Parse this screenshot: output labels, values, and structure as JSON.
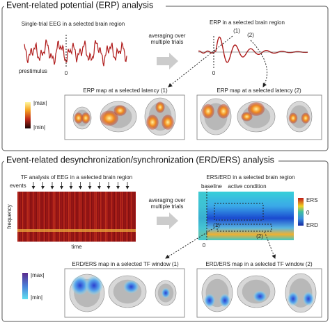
{
  "erp_panel": {
    "title": "Event-related potential (ERP) analysis",
    "single_trial": {
      "label": "Single-trial EEG in a selected brain region",
      "prestimulus_label": "prestimulus",
      "zero_label": "0"
    },
    "averaging_label": [
      "averaging over",
      "multiple trials"
    ],
    "erp": {
      "label": "ERP in a selected brain region",
      "peak_1": "(1)",
      "peak_2": "(2)",
      "zero_label": "0"
    },
    "map_1": "ERP map at a selected latency (1)",
    "map_2": "ERP map at a selected latency (2)",
    "colorbar": {
      "max": "|max|",
      "min": "|min|"
    }
  },
  "erd_panel": {
    "title": "Event-related desynchronization/synchronization (ERD/ERS) analysis",
    "tf": {
      "label": "TF analysis of EEG in a selected brain region",
      "events_label": "events",
      "y_label": "frequency",
      "x_label": "time"
    },
    "averaging_label": [
      "averaging over",
      "multiple trials"
    ],
    "ers_erd": {
      "label": "ERS/ERD in a selected brain region",
      "baseline_label": "baseline",
      "active_label": "active condition",
      "window_1": "(1)",
      "window_2": "(2)",
      "zero_label": "0"
    },
    "tf_colorbar": {
      "top": "ERS",
      "middle": "0",
      "bottom": "ERD"
    },
    "map_1": "ERD/ERS map in a selected TF window (1)",
    "map_2": "ERD/ERS map in a selected TF window (2)",
    "colorbar": {
      "max": "|max|",
      "min": "|min|"
    }
  }
}
